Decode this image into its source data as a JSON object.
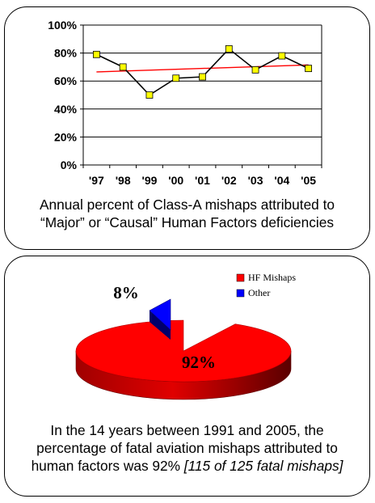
{
  "chart_data": [
    {
      "type": "line",
      "categories": [
        "'97",
        "'98",
        "'99",
        "'00",
        "'01",
        "'02",
        "'03",
        "'04",
        "'05"
      ],
      "series": [
        {
          "values": [
            79,
            70,
            50,
            62,
            63,
            83,
            68,
            78,
            69
          ],
          "color": "#000000",
          "marker_color": "#ffff00"
        }
      ],
      "trendline": {
        "start": 66.5,
        "end": 71.5,
        "color": "#ff0000"
      },
      "ylim": [
        0,
        100
      ],
      "yticks": [
        "0%",
        "20%",
        "40%",
        "60%",
        "80%",
        "100%"
      ],
      "grid": true,
      "caption_lines": [
        "Annual percent of Class-A mishaps attributed to",
        "“Major” or “Causal” Human Factors deficiencies"
      ]
    },
    {
      "type": "pie",
      "style": "3d",
      "slices": [
        {
          "name": "HF Mishaps",
          "value": 92,
          "label": "92%",
          "color": "#ff0000"
        },
        {
          "name": "Other",
          "value": 8,
          "label": "8%",
          "color": "#0000ff"
        }
      ],
      "legend": {
        "position": "top-right"
      },
      "caption_lines": [
        "In  the 14 years between 1991 and 2005, the",
        "percentage of fatal aviation mishaps attributed to"
      ],
      "caption_last_plain": "human factors was 92% ",
      "caption_last_italic": "[115 of 125 fatal mishaps]"
    }
  ]
}
